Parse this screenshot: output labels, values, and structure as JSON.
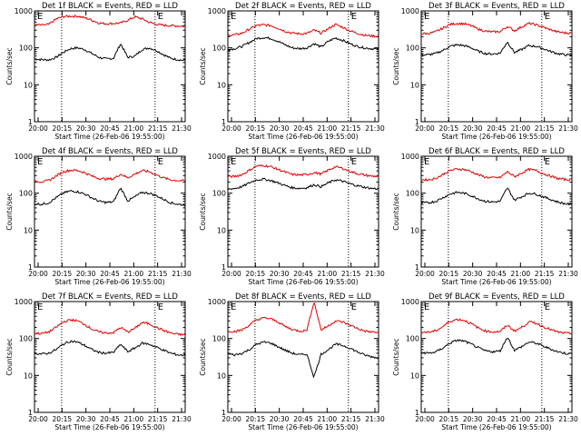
{
  "chart_data": [
    {
      "type": "line",
      "title": "Det 1f BLACK = Events, RED = LLD",
      "xlabel": "Start Time (26-Feb-06 19:55:00)",
      "ylabel": "Counts/sec",
      "yscale": "log",
      "ylim": [
        1,
        1000
      ],
      "xlim": [
        0,
        100
      ],
      "xticks": [
        "20:00",
        "20:15",
        "20:30",
        "20:45",
        "21:00",
        "21:15",
        "21:30"
      ],
      "yticks": [
        "1",
        "10",
        "100",
        "1000"
      ],
      "markers": [
        "E",
        "E"
      ],
      "vlines": [
        18,
        80
      ],
      "series": [
        {
          "color": "#000000",
          "values": [
            50,
            48,
            47,
            55,
            75,
            95,
            100,
            90,
            70,
            55,
            50,
            52,
            130,
            55,
            60,
            90,
            100,
            85,
            65,
            52,
            48,
            45
          ]
        },
        {
          "color": "#e00000",
          "values": [
            420,
            410,
            430,
            600,
            700,
            720,
            720,
            650,
            560,
            470,
            450,
            460,
            470,
            560,
            690,
            610,
            490,
            430,
            410,
            400,
            390,
            380
          ]
        }
      ]
    },
    {
      "type": "line",
      "title": "Det 2f BLACK = Events, RED = LLD",
      "xlabel": "Start Time (26-Feb-06 19:55:00)",
      "ylabel": "Counts/sec",
      "yscale": "log",
      "ylim": [
        1,
        1000
      ],
      "xlim": [
        0,
        100
      ],
      "xticks": [
        "20:00",
        "20:15",
        "20:30",
        "20:45",
        "21:00",
        "21:15",
        "21:30"
      ],
      "yticks": [
        "1",
        "10",
        "100",
        "1000"
      ],
      "markers": [
        "E",
        "E"
      ],
      "vlines": [
        18,
        80
      ],
      "series": [
        {
          "color": "#000000",
          "values": [
            90,
            95,
            110,
            140,
            180,
            190,
            180,
            150,
            120,
            100,
            95,
            100,
            130,
            105,
            150,
            185,
            160,
            130,
            110,
            100,
            95,
            92
          ]
        },
        {
          "color": "#e00000",
          "values": [
            220,
            225,
            250,
            320,
            400,
            420,
            400,
            340,
            280,
            250,
            240,
            245,
            300,
            250,
            330,
            430,
            360,
            290,
            250,
            220,
            210,
            205
          ]
        }
      ]
    },
    {
      "type": "line",
      "title": "Det 3f BLACK = Events, RED = LLD",
      "xlabel": "Start Time (26-Feb-06 19:55:00)",
      "ylabel": "Counts/sec",
      "yscale": "log",
      "ylim": [
        1,
        1000
      ],
      "xlim": [
        0,
        100
      ],
      "xticks": [
        "20:00",
        "20:15",
        "20:30",
        "20:45",
        "21:00",
        "21:15",
        "21:30"
      ],
      "yticks": [
        "1",
        "10",
        "100",
        "1000"
      ],
      "markers": [
        "E",
        "E"
      ],
      "vlines": [
        18,
        80
      ],
      "series": [
        {
          "color": "#000000",
          "values": [
            65,
            65,
            70,
            85,
            110,
            120,
            115,
            100,
            80,
            70,
            68,
            72,
            145,
            75,
            90,
            115,
            110,
            95,
            80,
            70,
            65,
            62
          ]
        },
        {
          "color": "#e00000",
          "values": [
            240,
            245,
            270,
            340,
            430,
            460,
            450,
            390,
            320,
            280,
            270,
            275,
            380,
            290,
            370,
            460,
            420,
            360,
            310,
            270,
            255,
            250
          ]
        }
      ]
    },
    {
      "type": "line",
      "title": "Det 4f BLACK = Events, RED = LLD",
      "xlabel": "Start Time (26-Feb-06 19:55:00)",
      "ylabel": "Counts/sec",
      "yscale": "log",
      "ylim": [
        1,
        1000
      ],
      "xlim": [
        0,
        100
      ],
      "xticks": [
        "20:00",
        "20:15",
        "20:30",
        "20:45",
        "21:00",
        "21:15",
        "21:30"
      ],
      "yticks": [
        "1",
        "10",
        "100",
        "1000"
      ],
      "markers": [
        "E",
        "E"
      ],
      "vlines": [
        18,
        80
      ],
      "series": [
        {
          "color": "#000000",
          "values": [
            52,
            50,
            55,
            75,
            100,
            115,
            110,
            95,
            75,
            60,
            56,
            58,
            140,
            62,
            80,
            105,
            100,
            85,
            68,
            55,
            50,
            48
          ]
        },
        {
          "color": "#e00000",
          "values": [
            210,
            205,
            220,
            290,
            380,
            420,
            410,
            360,
            290,
            250,
            240,
            245,
            330,
            260,
            330,
            410,
            380,
            310,
            260,
            230,
            220,
            215
          ]
        }
      ]
    },
    {
      "type": "line",
      "title": "Det 5f BLACK = Events, RED = LLD",
      "xlabel": "Start Time (26-Feb-06 19:55:00)",
      "ylabel": "Counts/sec",
      "yscale": "log",
      "ylim": [
        1,
        1000
      ],
      "xlim": [
        0,
        100
      ],
      "xticks": [
        "20:00",
        "20:15",
        "20:30",
        "20:45",
        "21:00",
        "21:15",
        "21:30"
      ],
      "yticks": [
        "1",
        "10",
        "100",
        "1000"
      ],
      "markers": [
        "E",
        "E"
      ],
      "vlines": [
        18,
        80
      ],
      "series": [
        {
          "color": "#000000",
          "values": [
            130,
            135,
            150,
            190,
            230,
            240,
            220,
            190,
            160,
            140,
            135,
            140,
            170,
            150,
            190,
            230,
            210,
            180,
            160,
            145,
            135,
            130
          ]
        },
        {
          "color": "#e00000",
          "values": [
            280,
            285,
            320,
            420,
            540,
            560,
            520,
            440,
            370,
            320,
            310,
            320,
            360,
            330,
            420,
            520,
            470,
            390,
            340,
            310,
            290,
            285
          ]
        }
      ]
    },
    {
      "type": "line",
      "title": "Det 6f BLACK = Events, RED = LLD",
      "xlabel": "Start Time (26-Feb-06 19:55:00)",
      "ylabel": "Counts/sec",
      "yscale": "log",
      "ylim": [
        1,
        1000
      ],
      "xlim": [
        0,
        100
      ],
      "xticks": [
        "20:00",
        "20:15",
        "20:30",
        "20:45",
        "21:00",
        "21:15",
        "21:30"
      ],
      "yticks": [
        "1",
        "10",
        "100",
        "1000"
      ],
      "markers": [
        "E",
        "E"
      ],
      "vlines": [
        18,
        80
      ],
      "series": [
        {
          "color": "#000000",
          "values": [
            55,
            55,
            60,
            75,
            95,
            105,
            100,
            85,
            70,
            60,
            58,
            60,
            140,
            65,
            80,
            100,
            95,
            80,
            68,
            58,
            52,
            50
          ]
        },
        {
          "color": "#e00000",
          "values": [
            230,
            230,
            250,
            320,
            410,
            450,
            440,
            380,
            310,
            270,
            260,
            265,
            380,
            280,
            350,
            440,
            410,
            340,
            290,
            250,
            235,
            230
          ]
        }
      ]
    },
    {
      "type": "line",
      "title": "Det 7f BLACK = Events, RED = LLD",
      "xlabel": "Start Time (26-Feb-06 19:55:00)",
      "ylabel": "Counts/sec",
      "yscale": "log",
      "ylim": [
        1,
        1000
      ],
      "xlim": [
        0,
        100
      ],
      "xticks": [
        "20:00",
        "20:15",
        "20:30",
        "20:45",
        "21:00",
        "21:15",
        "21:30"
      ],
      "yticks": [
        "1",
        "10",
        "100",
        "1000"
      ],
      "markers": [
        "E",
        "E"
      ],
      "vlines": [
        18,
        80
      ],
      "series": [
        {
          "color": "#000000",
          "values": [
            40,
            38,
            40,
            50,
            70,
            85,
            80,
            65,
            50,
            42,
            40,
            42,
            70,
            44,
            55,
            75,
            70,
            58,
            48,
            40,
            36,
            35
          ]
        },
        {
          "color": "#e00000",
          "values": [
            140,
            135,
            150,
            200,
            280,
            320,
            300,
            240,
            180,
            150,
            140,
            145,
            200,
            150,
            190,
            270,
            250,
            200,
            165,
            140,
            130,
            125
          ]
        }
      ]
    },
    {
      "type": "line",
      "title": "Det 8f BLACK = Events, RED = LLD",
      "xlabel": "Start Time (26-Feb-06 19:55:00)",
      "ylabel": "Counts/sec",
      "yscale": "log",
      "ylim": [
        1,
        1000
      ],
      "xlim": [
        0,
        100
      ],
      "xticks": [
        "20:00",
        "20:15",
        "20:30",
        "20:45",
        "21:00",
        "21:15",
        "21:30"
      ],
      "yticks": [
        "1",
        "10",
        "100",
        "1000"
      ],
      "markers": [
        "E",
        "E"
      ],
      "vlines": [
        18,
        80
      ],
      "series": [
        {
          "color": "#000000",
          "values": [
            38,
            36,
            40,
            50,
            70,
            80,
            75,
            60,
            48,
            40,
            36,
            38,
            9,
            38,
            50,
            70,
            65,
            55,
            44,
            36,
            32,
            30
          ]
        },
        {
          "color": "#e00000",
          "values": [
            160,
            155,
            170,
            230,
            320,
            360,
            340,
            280,
            210,
            175,
            160,
            165,
            1000,
            170,
            220,
            300,
            280,
            230,
            190,
            160,
            150,
            145
          ]
        }
      ]
    },
    {
      "type": "line",
      "title": "Det 9f BLACK = Events, RED = LLD",
      "xlabel": "Start Time (26-Feb-06 19:55:00)",
      "ylabel": "Counts/sec",
      "yscale": "log",
      "ylim": [
        1,
        1000
      ],
      "xlim": [
        0,
        100
      ],
      "xticks": [
        "20:00",
        "20:15",
        "20:30",
        "20:45",
        "21:00",
        "21:15",
        "21:30"
      ],
      "yticks": [
        "1",
        "10",
        "100",
        "1000"
      ],
      "markers": [
        "E",
        "E"
      ],
      "vlines": [
        18,
        80
      ],
      "series": [
        {
          "color": "#000000",
          "values": [
            42,
            40,
            43,
            55,
            75,
            90,
            85,
            70,
            55,
            46,
            44,
            46,
            110,
            48,
            60,
            80,
            75,
            62,
            52,
            44,
            40,
            38
          ]
        },
        {
          "color": "#e00000",
          "values": [
            150,
            148,
            160,
            210,
            290,
            330,
            310,
            250,
            190,
            160,
            150,
            155,
            230,
            160,
            200,
            280,
            260,
            210,
            175,
            150,
            140,
            135
          ]
        }
      ]
    }
  ]
}
